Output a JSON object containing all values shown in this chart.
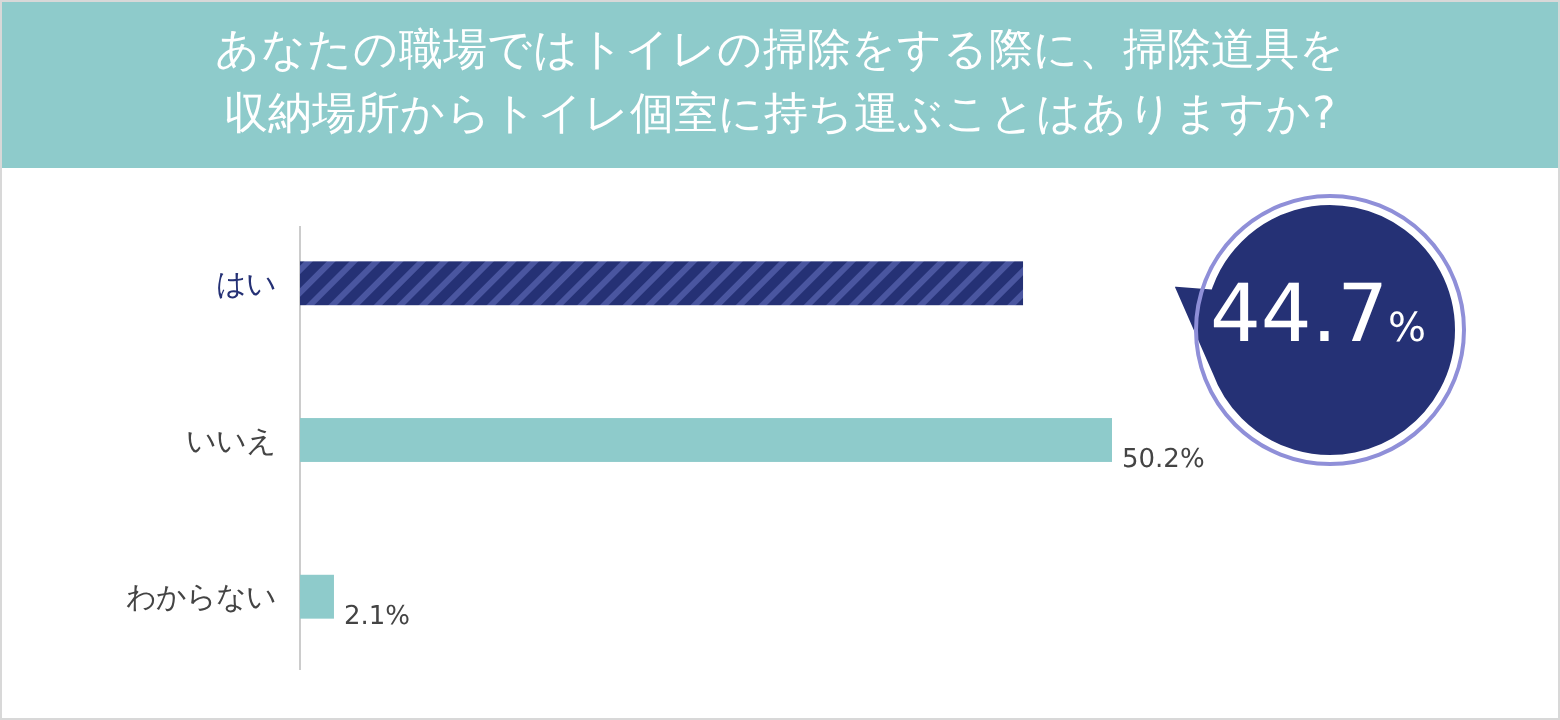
{
  "chart_data": {
    "type": "bar",
    "orientation": "horizontal",
    "title": "あなたの職場ではトイレの掃除をする際に、掃除道具を収納場所からトイレ個室に持ち運ぶことはありますか?",
    "categories": [
      "はい",
      "いいえ",
      "わからない"
    ],
    "values": [
      44.7,
      50.2,
      2.1
    ],
    "colors": [
      "#253175",
      "#8ecbcb",
      "#8ecbcb"
    ],
    "value_labels": [
      "44.7%",
      "50.2%",
      "2.1%"
    ]
  }
}
